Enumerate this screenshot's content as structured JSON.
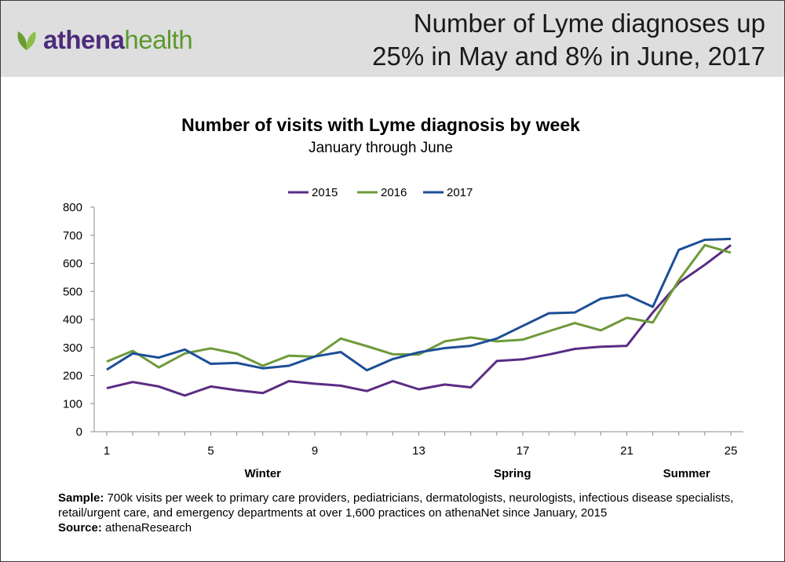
{
  "header": {
    "logo_text_bold": "athena",
    "logo_text_light": "health",
    "headline_line1": "Number of Lyme diagnoses up",
    "headline_line2": "25% in May and 8% in June, 2017",
    "background": "#dedede"
  },
  "footnote": {
    "sample_label": "Sample:",
    "sample_text": "700k visits per week to primary care providers, pediatricians, dermatologists, neurologists, infectious disease specialists, retail/urgent care, and emergency departments at over 1,600 practices on athenaNet since January, 2015",
    "source_label": "Source:",
    "source_text": "athenaResearch"
  },
  "chart_data": {
    "type": "line",
    "title": "Number of visits with Lyme diagnosis by week",
    "subtitle": "January through June",
    "xlabel": "",
    "ylabel": "",
    "x": [
      1,
      2,
      3,
      4,
      5,
      6,
      7,
      8,
      9,
      10,
      11,
      12,
      13,
      14,
      15,
      16,
      17,
      18,
      19,
      20,
      21,
      22,
      23,
      24,
      25
    ],
    "x_tick_labels": [
      "1",
      "5",
      "9",
      "13",
      "17",
      "21",
      "25"
    ],
    "x_tick_values": [
      1,
      5,
      9,
      13,
      17,
      21,
      25
    ],
    "season_labels": [
      {
        "label": "Winter",
        "x": 7
      },
      {
        "label": "Spring",
        "x": 16.6
      },
      {
        "label": "Summer",
        "x": 23.3
      }
    ],
    "ylim": [
      0,
      800
    ],
    "y_ticks": [
      0,
      100,
      200,
      300,
      400,
      500,
      600,
      700,
      800
    ],
    "grid": false,
    "legend_position": "top-center",
    "series": [
      {
        "name": "2015",
        "color": "#5b2c83",
        "values": [
          155,
          177,
          161,
          129,
          161,
          148,
          138,
          180,
          171,
          164,
          145,
          180,
          151,
          168,
          158,
          252,
          258,
          275,
          295,
          303,
          306,
          425,
          531,
          595,
          665
        ]
      },
      {
        "name": "2016",
        "color": "#6e9a3a",
        "values": [
          250,
          288,
          229,
          279,
          297,
          278,
          235,
          271,
          267,
          332,
          305,
          276,
          275,
          322,
          336,
          322,
          328,
          358,
          387,
          361,
          406,
          389,
          540,
          665,
          638
        ]
      },
      {
        "name": "2017",
        "color": "#1c4f96",
        "values": [
          221,
          279,
          264,
          293,
          242,
          245,
          226,
          235,
          268,
          284,
          219,
          259,
          283,
          298,
          306,
          332,
          377,
          422,
          425,
          474,
          487,
          445,
          648,
          684,
          687
        ]
      }
    ]
  }
}
